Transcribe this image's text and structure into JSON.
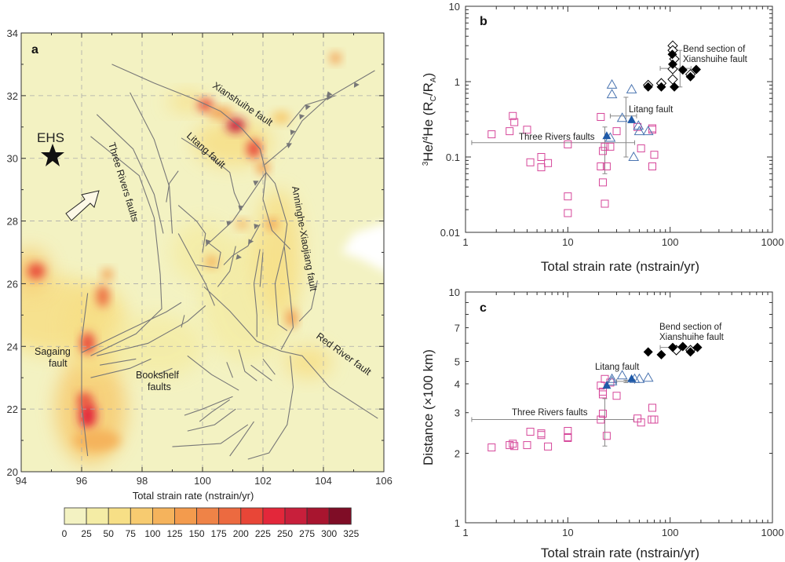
{
  "map": {
    "panel_label": "a",
    "lon_ticks": [
      94,
      96,
      98,
      100,
      102,
      104,
      106
    ],
    "lat_ticks": [
      20,
      22,
      24,
      26,
      28,
      30,
      32,
      34
    ],
    "labels": {
      "xianshuihe": "Xianshuihe fault",
      "litang": "Litang fault",
      "three_rivers": "Three Rivers faults",
      "anninghe": "Anninghe-Xiaojiang fault",
      "red_river": "Red River fault",
      "sagaing_1": "Sagaing",
      "sagaing_2": "fault",
      "bookshelf_1": "Bookshelf",
      "bookshelf_2": "faults",
      "ehs": "EHS"
    },
    "background_color": "#f3f2c2",
    "fault_color": "#777777"
  },
  "colorbar": {
    "title": "Total strain rate (nstrain/yr)",
    "ticks": [
      "0",
      "25",
      "50",
      "75",
      "100",
      "125",
      "150",
      "175",
      "200",
      "225",
      "250",
      "275",
      "300",
      "325"
    ],
    "colors": [
      "#f3f2c2",
      "#f4eca5",
      "#f7df86",
      "#f7cb70",
      "#f5b35c",
      "#f39b4d",
      "#ef8347",
      "#ec6a40",
      "#e84637",
      "#e3273a",
      "#c81f3b",
      "#a8152f",
      "#7f0d26"
    ]
  },
  "chart_data": [
    {
      "panel_label": "b",
      "type": "scatter",
      "xlabel": "Total strain rate (nstrain/yr)",
      "ylabel_parts": {
        "sup1": "3",
        "a": "He/",
        "sup2": "4",
        "b": "He (R",
        "sub1": "C",
        "c": "/R",
        "sub2": "A",
        "d": ")"
      },
      "xscale": "log",
      "yscale": "log",
      "xlim": [
        1,
        1000
      ],
      "ylim": [
        0.01,
        10
      ],
      "xticks": [
        "1",
        "10",
        "100",
        "1000"
      ],
      "yticks": [
        "0.01",
        "0.1",
        "1",
        "10"
      ],
      "ytick_values": [
        0.01,
        0.1,
        1,
        10
      ],
      "annotations": [
        "Three Rivers faults",
        "Litang fault",
        "Bend section of",
        "Xianshuihe fault"
      ],
      "series": [
        {
          "marker": "open-square",
          "color": "#d6479a",
          "points": [
            [
              1.8,
              0.2
            ],
            [
              2.9,
              0.35
            ],
            [
              3.0,
              0.29
            ],
            [
              2.7,
              0.22
            ],
            [
              4.0,
              0.23
            ],
            [
              10,
              0.147
            ],
            [
              5.5,
              0.1
            ],
            [
              4.3,
              0.085
            ],
            [
              5.5,
              0.073
            ],
            [
              6.4,
              0.083
            ],
            [
              21,
              0.34
            ],
            [
              30,
              0.22
            ],
            [
              23,
              0.137
            ],
            [
              26,
              0.137
            ],
            [
              22,
              0.12
            ],
            [
              21,
              0.075
            ],
            [
              24,
              0.075
            ],
            [
              22,
              0.046
            ],
            [
              23,
              0.024
            ],
            [
              10,
              0.03
            ],
            [
              10,
              0.018
            ],
            [
              48,
              0.25
            ],
            [
              67,
              0.24
            ],
            [
              67,
              0.23
            ],
            [
              52,
              0.13
            ],
            [
              70,
              0.107
            ],
            [
              67,
              0.075
            ]
          ]
        },
        {
          "marker": "open-triangle",
          "color": "#4a74b0",
          "points": [
            [
              27,
              0.91
            ],
            [
              27,
              0.68
            ],
            [
              42,
              0.79
            ],
            [
              34,
              0.33
            ],
            [
              49,
              0.26
            ],
            [
              50,
              0.22
            ],
            [
              61,
              0.22
            ],
            [
              26,
              0.18
            ],
            [
              44,
              0.1
            ]
          ]
        },
        {
          "marker": "filled-triangle",
          "color": "#1f5aa8",
          "points": [
            [
              24,
              0.19
            ],
            [
              42,
              0.31
            ]
          ]
        },
        {
          "marker": "open-diamond",
          "color": "#000000",
          "points": [
            [
              106,
              3.0
            ],
            [
              106,
              2.6
            ],
            [
              110,
              2.0
            ],
            [
              106,
              1.47
            ],
            [
              106,
              1.07
            ],
            [
              61,
              0.9
            ],
            [
              82,
              0.95
            ],
            [
              158,
              1.25
            ]
          ]
        },
        {
          "marker": "filled-diamond",
          "color": "#000000",
          "points": [
            [
              61,
              0.85
            ],
            [
              82,
              0.85
            ],
            [
              110,
              0.85
            ],
            [
              105,
              2.3
            ],
            [
              106,
              1.7
            ],
            [
              133,
              1.43
            ],
            [
              158,
              1.16
            ],
            [
              180,
              1.45
            ]
          ]
        }
      ],
      "error_bars": [
        {
          "x": 23,
          "y": 0.155,
          "xmin": 1.15,
          "xmax": 45,
          "ymin": 0.06,
          "ymax": 0.25
        },
        {
          "x": 37,
          "y": 0.35,
          "xmin": 26,
          "xmax": 47,
          "ymin": 0.1,
          "ymax": 0.62
        },
        {
          "x": 125,
          "y": 1.5,
          "xmin": 80,
          "xmax": 160,
          "ymin": 0.85,
          "ymax": 2.6
        }
      ]
    },
    {
      "panel_label": "c",
      "type": "scatter",
      "xlabel": "Total strain rate (nstrain/yr)",
      "ylabel": "Distance (×100 km)",
      "xscale": "log",
      "yscale": "log",
      "xlim": [
        1,
        1000
      ],
      "ylim": [
        1,
        10
      ],
      "xticks": [
        "1",
        "10",
        "100",
        "1000"
      ],
      "yticks": [
        "1",
        "2",
        "3",
        "4",
        "5",
        "7",
        "10"
      ],
      "ytick_values": [
        1,
        2,
        3,
        4,
        5,
        7,
        10
      ],
      "annotations": [
        "Three Rivers faults",
        "Litang fault",
        "Bend section of",
        "Xianshuihe fault"
      ],
      "series": [
        {
          "marker": "open-square",
          "color": "#d6479a",
          "points": [
            [
              1.8,
              2.12
            ],
            [
              2.7,
              2.17
            ],
            [
              2.9,
              2.2
            ],
            [
              3.0,
              2.15
            ],
            [
              4.0,
              2.17
            ],
            [
              4.3,
              2.48
            ],
            [
              5.5,
              2.44
            ],
            [
              5.5,
              2.4
            ],
            [
              6.4,
              2.14
            ],
            [
              10,
              2.5
            ],
            [
              10,
              2.35
            ],
            [
              10,
              2.33
            ],
            [
              21,
              3.93
            ],
            [
              23,
              4.2
            ],
            [
              22,
              3.7
            ],
            [
              22,
              3.6
            ],
            [
              26,
              4.05
            ],
            [
              30,
              3.55
            ],
            [
              22,
              2.97
            ],
            [
              21,
              2.8
            ],
            [
              24,
              2.38
            ],
            [
              48,
              2.83
            ],
            [
              52,
              2.72
            ],
            [
              67,
              3.15
            ],
            [
              66,
              2.8
            ],
            [
              70,
              2.8
            ]
          ]
        },
        {
          "marker": "open-triangle",
          "color": "#4a74b0",
          "points": [
            [
              27,
              4.2
            ],
            [
              34,
              4.35
            ],
            [
              45,
              4.2
            ],
            [
              50,
              4.2
            ],
            [
              61,
              4.25
            ],
            [
              27,
              4.1
            ]
          ]
        },
        {
          "marker": "filled-triangle",
          "color": "#1f5aa8",
          "points": [
            [
              24,
              3.93
            ],
            [
              42,
              4.2
            ]
          ]
        },
        {
          "marker": "open-diamond",
          "color": "#000000",
          "points": [
            [
              115,
              5.6
            ],
            [
              158,
              5.6
            ]
          ]
        },
        {
          "marker": "filled-diamond",
          "color": "#000000",
          "points": [
            [
              61,
              5.5
            ],
            [
              82,
              5.35
            ],
            [
              106,
              5.75
            ],
            [
              133,
              5.8
            ],
            [
              185,
              5.75
            ],
            [
              158,
              5.5
            ]
          ]
        }
      ],
      "error_bars": [
        {
          "x": 23,
          "y": 2.8,
          "xmin": 1.15,
          "xmax": 44,
          "ymin": 2.15,
          "ymax": 3.45
        },
        {
          "x": 37,
          "y": 4.1,
          "xmin": 30,
          "xmax": 45,
          "ymin": 4.05,
          "ymax": 4.15
        },
        {
          "x": 110,
          "y": 5.75,
          "xmin": 80,
          "xmax": 130,
          "ymin": 5.7,
          "ymax": 5.8
        }
      ]
    }
  ]
}
